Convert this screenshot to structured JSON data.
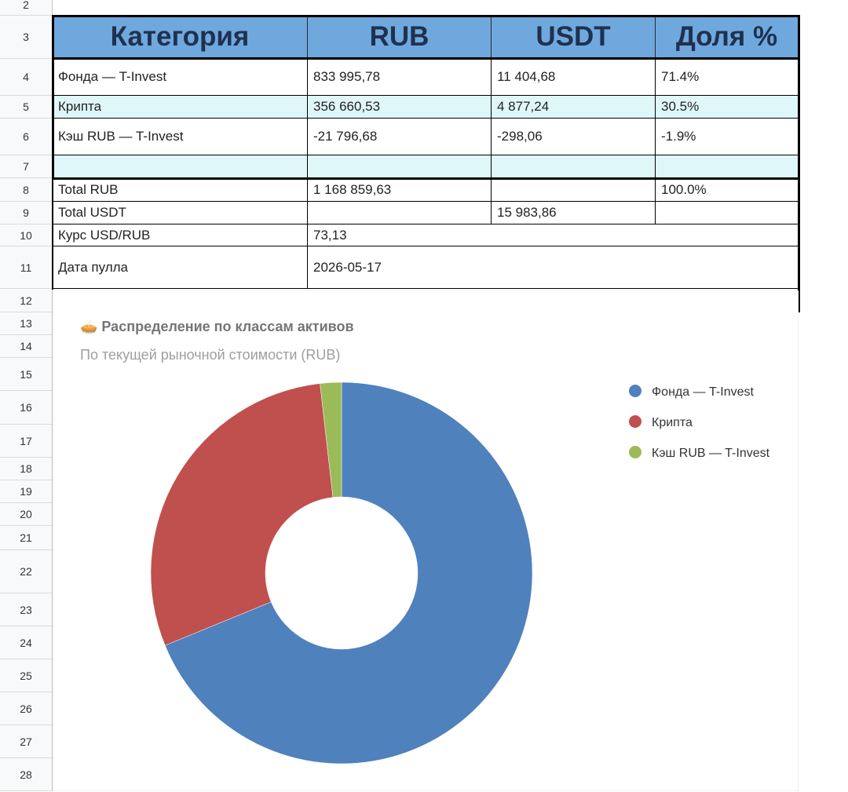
{
  "row_numbers": [
    2,
    3,
    4,
    5,
    6,
    7,
    8,
    9,
    10,
    11,
    12,
    13,
    14,
    15,
    16,
    17,
    18,
    19,
    20,
    21,
    22,
    23,
    24,
    25,
    26,
    27,
    28
  ],
  "table": {
    "header": [
      "Категория",
      "RUB",
      "USDT",
      "Доля %"
    ],
    "rows": [
      [
        "Фонда — T-Invest",
        "833 995,78",
        "11 404,68",
        "71.4%"
      ],
      [
        "Крипта",
        "356 660,53",
        "4 877,24",
        "30.5%"
      ],
      [
        "Кэш RUB — T-Invest",
        "-21 796,68",
        "-298,06",
        "-1.9%"
      ],
      [
        null,
        null,
        null,
        null
      ],
      [
        "Total RUB",
        "1 168 859,63",
        null,
        "100.0%"
      ],
      [
        "Total USDT",
        null,
        "15 983,86",
        null
      ],
      [
        "Курс USD/RUB",
        "73,13"
      ],
      [
        "Дата пулла",
        "2026-05-17"
      ]
    ]
  },
  "chart_data": {
    "type": "pie",
    "donut": true,
    "title": "🥧 Распределение по классам активов",
    "subtitle": "По текущей рыночной стоимости (RUB)",
    "categories": [
      "Фонда — T-Invest",
      "Крипта",
      "Кэш RUB — T-Invest"
    ],
    "values": [
      68.8,
      29.4,
      1.8
    ],
    "colors": [
      "#4f81bd",
      "#c0504d",
      "#9bbb59"
    ]
  }
}
